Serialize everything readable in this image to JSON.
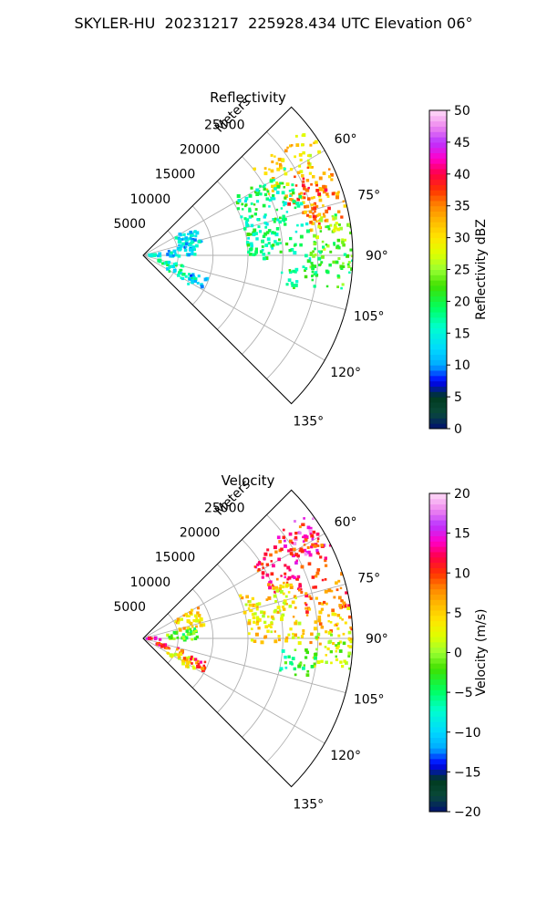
{
  "figure": {
    "title": "SKYLER-HU  20231217  225928.434 UTC Elevation 06°"
  },
  "chart_data": [
    {
      "type": "heatmap",
      "title": "Reflectivity",
      "radial_label": "Meters",
      "range_ticks": [
        5000,
        10000,
        15000,
        20000,
        25000
      ],
      "range_tick_labels": [
        "5000",
        "10000",
        "15000",
        "20000",
        "25000"
      ],
      "rmax": 30000,
      "azimuth_range_deg": [
        45,
        135
      ],
      "azimuth_ticks": [
        60,
        75,
        90,
        105,
        120,
        135
      ],
      "azimuth_tick_labels": [
        "60°",
        "75°",
        "90°",
        "105°",
        "120°",
        "135°"
      ],
      "colorbar": {
        "label": "Reflectivity dBZ",
        "range": [
          0,
          50
        ],
        "ticks": [
          0,
          5,
          10,
          15,
          20,
          25,
          30,
          35,
          40,
          45,
          50
        ],
        "tick_labels": [
          "0",
          "5",
          "10",
          "15",
          "20",
          "25",
          "30",
          "35",
          "40",
          "45",
          "50"
        ]
      },
      "echo_regions": [
        {
          "az": [
            52,
            64
          ],
          "r": [
            20000,
            30000
          ],
          "value": 30
        },
        {
          "az": [
            62,
            80
          ],
          "r": [
            24000,
            30000
          ],
          "value": 33
        },
        {
          "az": [
            64,
            72
          ],
          "r": [
            22000,
            28000
          ],
          "value": 36
        },
        {
          "az": [
            72,
            82
          ],
          "r": [
            23500,
            27500
          ],
          "value": 35
        },
        {
          "az": [
            78,
            94
          ],
          "r": [
            24500,
            30000
          ],
          "value": 24
        },
        {
          "az": [
            86,
            100
          ],
          "r": [
            24000,
            30000
          ],
          "value": 21
        },
        {
          "az": [
            58,
            92
          ],
          "r": [
            15000,
            24000
          ],
          "value": 18
        },
        {
          "az": [
            94,
            103
          ],
          "r": [
            20000,
            25000
          ],
          "value": 20
        },
        {
          "az": [
            60,
            78
          ],
          "r": [
            5000,
            9000
          ],
          "value": 13
        },
        {
          "az": [
            78,
            92
          ],
          "r": [
            3500,
            8000
          ],
          "value": 13
        },
        {
          "az": [
            85,
            96
          ],
          "r": [
            500,
            2500
          ],
          "value": 15
        },
        {
          "az": [
            104,
            113
          ],
          "r": [
            2000,
            6000
          ],
          "value": 17
        },
        {
          "az": [
            112,
            123
          ],
          "r": [
            4000,
            8500
          ],
          "value": 16
        },
        {
          "az": [
            110,
            118
          ],
          "r": [
            6500,
            10000
          ],
          "value": 12
        }
      ]
    },
    {
      "type": "heatmap",
      "title": "Velocity",
      "radial_label": "Meters",
      "range_ticks": [
        5000,
        10000,
        15000,
        20000,
        25000
      ],
      "range_tick_labels": [
        "5000",
        "10000",
        "15000",
        "20000",
        "25000"
      ],
      "rmax": 30000,
      "azimuth_range_deg": [
        45,
        135
      ],
      "azimuth_ticks": [
        60,
        75,
        90,
        105,
        120,
        135
      ],
      "azimuth_tick_labels": [
        "60°",
        "75°",
        "90°",
        "105°",
        "120°",
        "135°"
      ],
      "colorbar": {
        "label": "Velocity (m/s)",
        "range": [
          -20,
          20
        ],
        "ticks": [
          -20,
          -15,
          -10,
          -5,
          0,
          5,
          10,
          15,
          20
        ],
        "tick_labels": [
          "−20",
          "−15",
          "−10",
          "−5",
          "0",
          "5",
          "10",
          "15",
          "20"
        ]
      },
      "echo_regions": [
        {
          "az": [
            52,
            64
          ],
          "r": [
            24000,
            30000
          ],
          "value": 15
        },
        {
          "az": [
            54,
            72
          ],
          "r": [
            19000,
            29000
          ],
          "value": 11
        },
        {
          "az": [
            72,
            82
          ],
          "r": [
            23000,
            30000
          ],
          "value": 9
        },
        {
          "az": [
            78,
            92
          ],
          "r": [
            24000,
            30000
          ],
          "value": 6
        },
        {
          "az": [
            88,
            100
          ],
          "r": [
            24000,
            30000
          ],
          "value": 1
        },
        {
          "az": [
            94,
            104
          ],
          "r": [
            20000,
            25000
          ],
          "value": -4
        },
        {
          "az": [
            66,
            92
          ],
          "r": [
            15000,
            23000
          ],
          "value": 4
        },
        {
          "az": [
            60,
            78
          ],
          "r": [
            5000,
            9000
          ],
          "value": 5
        },
        {
          "az": [
            78,
            92
          ],
          "r": [
            3500,
            8000
          ],
          "value": -2
        },
        {
          "az": [
            85,
            96
          ],
          "r": [
            500,
            2500
          ],
          "value": 13
        },
        {
          "az": [
            104,
            113
          ],
          "r": [
            2000,
            6000
          ],
          "value": 10
        },
        {
          "az": [
            112,
            123
          ],
          "r": [
            4000,
            8500
          ],
          "value": 4
        },
        {
          "az": [
            110,
            118
          ],
          "r": [
            6500,
            10000
          ],
          "value": 10
        }
      ]
    }
  ]
}
